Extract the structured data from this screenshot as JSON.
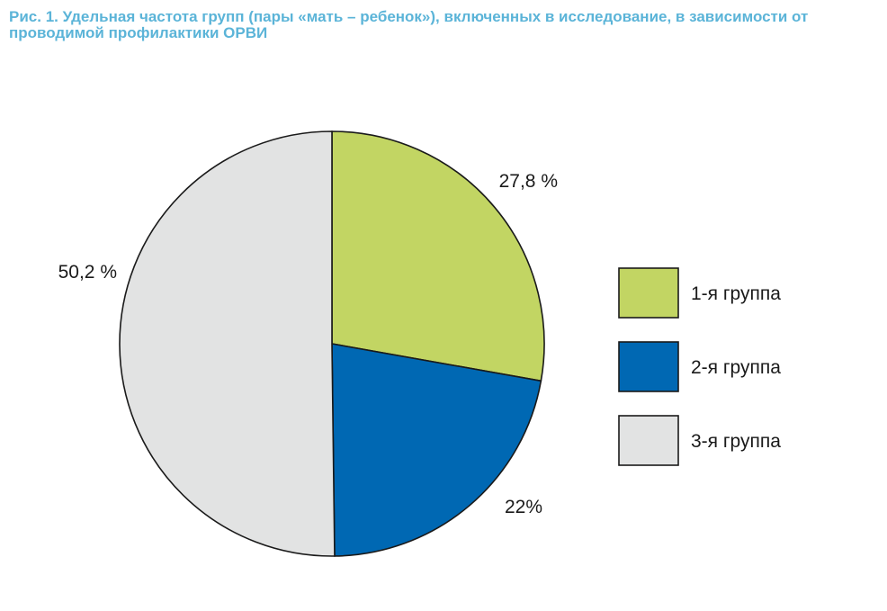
{
  "chart_data": {
    "type": "pie",
    "title": "Рис. 1. Удельная частота групп (пары «мать – ребенок»), включенных в исследование, в зависимости от проводимой профилактики ОРВИ",
    "slices": [
      {
        "label": "1-я группа",
        "value": 27.8,
        "value_label": "27,8 %",
        "color": "#c2d563"
      },
      {
        "label": "2-я группа",
        "value": 22.0,
        "value_label": "22%",
        "color": "#0068b3"
      },
      {
        "label": "3-я группа",
        "value": 50.2,
        "value_label": "50,2 %",
        "color": "#e2e3e3"
      }
    ],
    "legend_position": "right"
  }
}
